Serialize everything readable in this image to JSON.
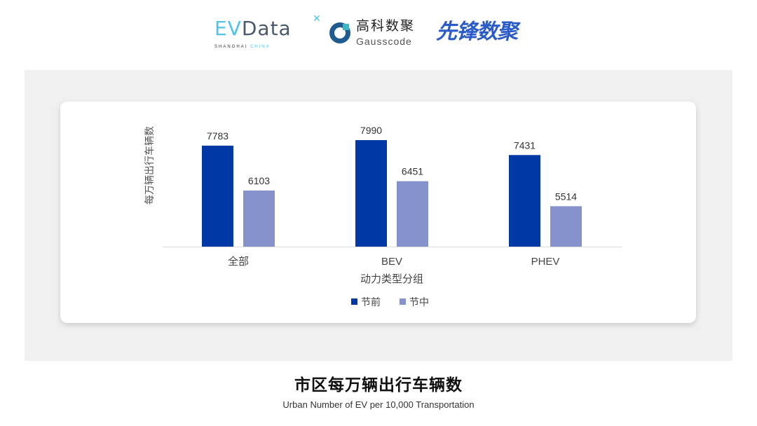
{
  "logos": {
    "evdata": {
      "word_ev": "EV",
      "word_rest": "Data",
      "sub_a": "SHANGHAI",
      "sub_b": "CHINA"
    },
    "gauss": {
      "cn": "高科数聚",
      "en": "Gausscode"
    },
    "xianfeng": "先锋数聚"
  },
  "title": "市区每万辆出行车辆数",
  "subtitle": "Urban Number of EV per 10,000 Transportation",
  "chart_data": {
    "type": "bar",
    "categories": [
      "全部",
      "BEV",
      "PHEV"
    ],
    "series": [
      {
        "name": "节前",
        "values": [
          7783,
          7990,
          7431
        ],
        "color": "#0039a6"
      },
      {
        "name": "节中",
        "values": [
          6103,
          6451,
          5514
        ],
        "color": "#8592cc"
      }
    ],
    "xlabel": "动力类型分组",
    "ylabel": "每万辆出行车辆数",
    "ylim": [
      4000,
      9000
    ],
    "grid": false,
    "legend": "bottom",
    "data_labels": true
  }
}
